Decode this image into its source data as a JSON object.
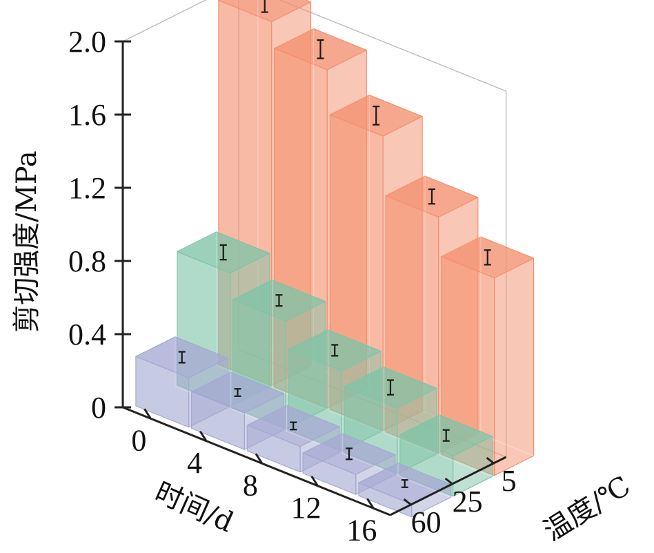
{
  "chart_data": {
    "type": "bar3d",
    "ylabel": "剪切强度/MPa",
    "xlabel": "时间/d",
    "zlabel": "温度/℃",
    "yticks": [
      "0",
      "0.4",
      "0.8",
      "1.2",
      "1.6",
      "2.0"
    ],
    "ylim": [
      0,
      2.0
    ],
    "x_categories": [
      "0",
      "4",
      "8",
      "12",
      "16"
    ],
    "z_categories": [
      "5",
      "25",
      "60"
    ],
    "series": [
      {
        "temperature": "5",
        "color": "#f4906e",
        "values": [
          1.99,
          1.85,
          1.61,
          1.29,
          1.08
        ],
        "errors": [
          0.06,
          0.05,
          0.05,
          0.04,
          0.04
        ]
      },
      {
        "temperature": "25",
        "color": "#7fc4a8",
        "values": [
          0.73,
          0.59,
          0.44,
          0.36,
          0.22
        ],
        "errors": [
          0.04,
          0.03,
          0.03,
          0.04,
          0.03
        ]
      },
      {
        "temperature": "60",
        "color": "#a5a9d2",
        "values": [
          0.27,
          0.2,
          0.14,
          0.11,
          0.07
        ],
        "errors": [
          0.03,
          0.02,
          0.02,
          0.03,
          0.02
        ]
      }
    ]
  }
}
